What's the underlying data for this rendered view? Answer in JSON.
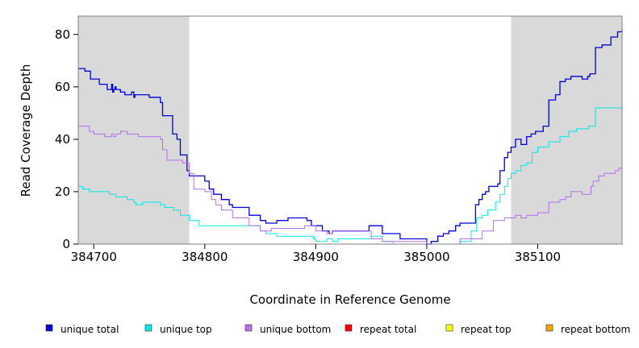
{
  "chart_data": {
    "type": "line",
    "xlabel": "Coordinate in Reference Genome",
    "ylabel": "Read Coverage Depth",
    "xlim": [
      384686,
      385176
    ],
    "ylim": [
      0,
      87
    ],
    "x_ticks": [
      384700,
      384800,
      384900,
      385000,
      385100
    ],
    "y_ticks": [
      0,
      20,
      40,
      60,
      80
    ],
    "shaded_regions": [
      [
        384686,
        384786
      ],
      [
        385076,
        385176
      ]
    ],
    "shade_color": "#d9d9d9",
    "grid": false,
    "legend_position": "bottom",
    "series": [
      {
        "name": "unique total",
        "color": "#0000dd",
        "x": [
          384686,
          384692,
          384697,
          384705,
          384712,
          384716,
          384717,
          384718,
          384719,
          384720,
          384724,
          384728,
          384734,
          384736,
          384737,
          384750,
          384760,
          384762,
          384764,
          384771,
          384773,
          384775,
          384778,
          384784,
          384786,
          384790,
          384800,
          384804,
          384808,
          384815,
          384822,
          384825,
          384840,
          384850,
          384855,
          384860,
          384865,
          384875,
          384885,
          384892,
          384896,
          384906,
          384910,
          384912,
          384915,
          384948,
          384952,
          384960,
          384976,
          384980,
          385000,
          385004,
          385010,
          385015,
          385020,
          385026,
          385030,
          385044,
          385047,
          385050,
          385053,
          385056,
          385064,
          385066,
          385070,
          385073,
          385076,
          385080,
          385085,
          385090,
          385094,
          385098,
          385105,
          385110,
          385116,
          385120,
          385125,
          385130,
          385140,
          385145,
          385147,
          385152,
          385158,
          385166,
          385172,
          385176
        ],
        "y": [
          67,
          66,
          63,
          61,
          59,
          61,
          58,
          59,
          60,
          59,
          58,
          57,
          58,
          56,
          57,
          56,
          54,
          49,
          49,
          42,
          42,
          40,
          34,
          28,
          26,
          26,
          24,
          21,
          19,
          17,
          15,
          14,
          11,
          9,
          8,
          8,
          9,
          10,
          10,
          9,
          7,
          5,
          5,
          4,
          5,
          7,
          7,
          4,
          2,
          2,
          0,
          1,
          3,
          4,
          5,
          7,
          8,
          15,
          17,
          19,
          20,
          22,
          23,
          28,
          33,
          35,
          37,
          40,
          38,
          41,
          42,
          43,
          45,
          55,
          57,
          62,
          63,
          64,
          63,
          64,
          65,
          75,
          76,
          79,
          81,
          82
        ]
      },
      {
        "name": "unique top",
        "color": "#00e8e8",
        "x": [
          384686,
          384690,
          384696,
          384704,
          384714,
          384720,
          384730,
          384736,
          384738,
          384744,
          384760,
          384764,
          384772,
          384778,
          384786,
          384795,
          384850,
          384855,
          384865,
          384880,
          384890,
          384898,
          384900,
          384910,
          384915,
          384920,
          384945,
          384950,
          384960,
          384970,
          385000,
          385030,
          385040,
          385045,
          385050,
          385055,
          385062,
          385066,
          385070,
          385073,
          385076,
          385080,
          385085,
          385090,
          385095,
          385100,
          385110,
          385120,
          385128,
          385135,
          385146,
          385152,
          385176
        ],
        "y": [
          22,
          21,
          20,
          20,
          19,
          18,
          17,
          16,
          15,
          16,
          15,
          14,
          13,
          11,
          9,
          7,
          5,
          4,
          3,
          3,
          3,
          2,
          1,
          2,
          1,
          2,
          2,
          3,
          1,
          0,
          0,
          1,
          5,
          10,
          11,
          13,
          16,
          19,
          22,
          25,
          27,
          28,
          30,
          31,
          35,
          37,
          39,
          41,
          43,
          44,
          45,
          52,
          52
        ]
      },
      {
        "name": "unique bottom",
        "color": "#b46eee",
        "x": [
          384686,
          384696,
          384700,
          384710,
          384716,
          384718,
          384720,
          384724,
          384730,
          384740,
          384760,
          384762,
          384766,
          384780,
          384786,
          384790,
          384800,
          384806,
          384810,
          384815,
          384825,
          384840,
          384850,
          384860,
          384890,
          384900,
          384910,
          384915,
          384950,
          384960,
          385000,
          385030,
          385050,
          385060,
          385070,
          385080,
          385085,
          385090,
          385100,
          385110,
          385120,
          385125,
          385130,
          385140,
          385148,
          385150,
          385155,
          385160,
          385170,
          385173,
          385176
        ],
        "y": [
          45,
          43,
          42,
          41,
          42,
          41,
          42,
          43,
          42,
          41,
          40,
          36,
          32,
          31,
          27,
          21,
          20,
          17,
          15,
          13,
          10,
          7,
          5,
          6,
          7,
          5,
          4,
          5,
          2,
          1,
          0,
          2,
          5,
          9,
          10,
          11,
          10,
          11,
          12,
          16,
          17,
          18,
          20,
          19,
          22,
          24,
          26,
          27,
          28,
          29,
          30
        ]
      },
      {
        "name": "repeat total",
        "color": "#ff0000",
        "x": [
          384686,
          385176
        ],
        "y": [
          0,
          0
        ]
      },
      {
        "name": "repeat top",
        "color": "#ffff00",
        "x": [
          384686,
          385176
        ],
        "y": [
          0,
          0
        ]
      },
      {
        "name": "repeat bottom",
        "color": "#f0a800",
        "x": [
          384686,
          385176
        ],
        "y": [
          0,
          0
        ]
      }
    ]
  }
}
